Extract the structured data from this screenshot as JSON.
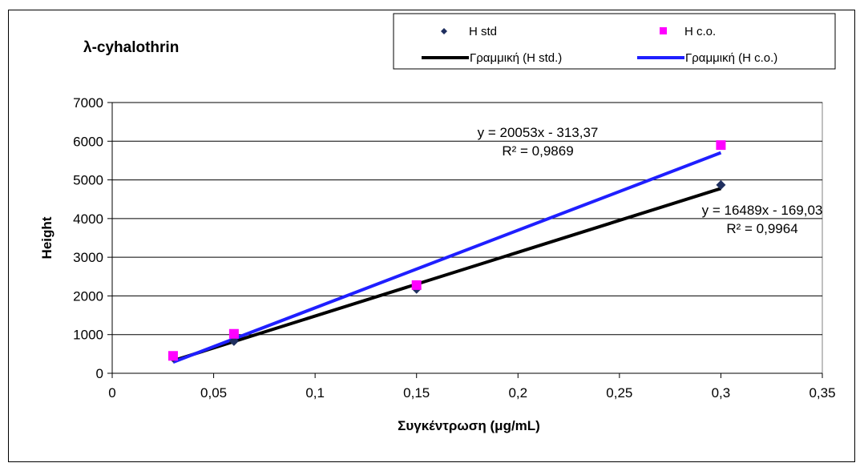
{
  "chart_data": {
    "type": "scatter",
    "title": "λ-cyhalothrin",
    "xlabel": "Συγκέντρωση (μg/mL)",
    "ylabel": "Height",
    "xlim": [
      0,
      0.35
    ],
    "ylim": [
      0,
      7000
    ],
    "x_ticks": [
      0,
      0.05,
      0.1,
      0.15,
      0.2,
      0.25,
      0.3,
      0.35
    ],
    "x_tick_labels": [
      "0",
      "0,05",
      "0,1",
      "0,15",
      "0,2",
      "0,25",
      "0,3",
      "0,35"
    ],
    "y_ticks": [
      0,
      1000,
      2000,
      3000,
      4000,
      5000,
      6000,
      7000
    ],
    "y_tick_labels": [
      "0",
      "1000",
      "2000",
      "3000",
      "4000",
      "5000",
      "6000",
      "7000"
    ],
    "grid": "horizontal",
    "legend_position": "top-right",
    "series": [
      {
        "name": "H std",
        "marker": "diamond",
        "color": "#1f2f5f",
        "x": [
          0.03,
          0.06,
          0.15,
          0.3
        ],
        "y": [
          400,
          830,
          2180,
          4870
        ]
      },
      {
        "name": "H c.o.",
        "marker": "square",
        "color": "#ff00ff",
        "x": [
          0.03,
          0.06,
          0.15,
          0.3
        ],
        "y": [
          450,
          1020,
          2280,
          5900
        ]
      }
    ],
    "trendlines": [
      {
        "name": "Γραμμική (H std.)",
        "color": "#000000",
        "slope": 16489,
        "intercept": -169.03,
        "x_range": [
          0.03,
          0.3
        ],
        "equation": "y = 16489x - 169,03",
        "r2": "R² = 0,9964"
      },
      {
        "name": "Γραμμική (H c.o.)",
        "color": "#1f1fff",
        "slope": 20053,
        "intercept": -313.37,
        "x_range": [
          0.03,
          0.3
        ],
        "equation": "y = 20053x - 313,37",
        "r2": "R² = 0,9869"
      }
    ]
  }
}
